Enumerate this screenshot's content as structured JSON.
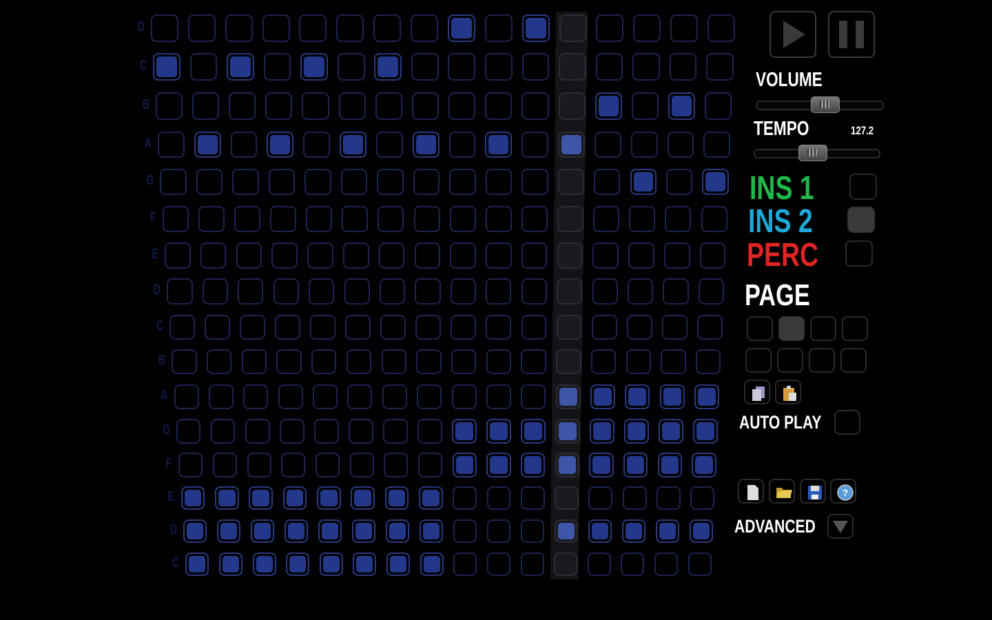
{
  "transport": {
    "play_icon": "play-icon",
    "pause_icon": "pause-icon"
  },
  "volume": {
    "label": "VOLUME",
    "level": 0.55
  },
  "tempo": {
    "label": "TEMPO",
    "value": "127.2",
    "level": 0.46
  },
  "instruments": [
    {
      "label": "INS 1",
      "color": "#1fb84a",
      "selected": false
    },
    {
      "label": "INS 2",
      "color": "#1ea8d8",
      "selected": true
    },
    {
      "label": "PERC",
      "color": "#e02424",
      "selected": false
    }
  ],
  "page": {
    "label": "PAGE",
    "selected_index": 1,
    "count": 8
  },
  "clipboard": {
    "copy_icon": "copy-icon",
    "paste_icon": "paste-icon"
  },
  "auto_play": {
    "label": "AUTO PLAY",
    "checked": false
  },
  "file": {
    "new_icon": "new-file-icon",
    "open_icon": "open-folder-icon",
    "save_icon": "save-icon",
    "help_icon": "help-icon"
  },
  "advanced": {
    "label": "ADVANCED"
  },
  "sequencer": {
    "playhead_column": 11,
    "row_labels": [
      "D",
      "C",
      "B",
      "A",
      "G",
      "F",
      "E",
      "D",
      "C",
      "B",
      "A",
      "G",
      "F",
      "E",
      "D",
      "C"
    ],
    "active": [
      [
        8,
        10
      ],
      [
        0,
        2,
        4,
        6
      ],
      [
        12,
        14
      ],
      [
        1,
        3,
        5,
        7,
        9,
        11
      ],
      [
        13,
        15
      ],
      [],
      [],
      [],
      [],
      [],
      [
        11,
        12,
        13,
        14,
        15
      ],
      [
        8,
        9,
        10,
        11,
        12,
        13,
        14,
        15
      ],
      [
        8,
        9,
        10,
        11,
        12,
        13,
        14,
        15
      ],
      [
        0,
        1,
        2,
        3,
        4,
        5,
        6,
        7
      ],
      [
        0,
        1,
        2,
        3,
        4,
        5,
        6,
        7,
        11,
        12,
        13,
        14,
        15
      ],
      [
        0,
        1,
        2,
        3,
        4,
        5,
        6,
        7
      ]
    ],
    "colors": {
      "active": "#23388a",
      "outline": "#1c2450"
    }
  }
}
